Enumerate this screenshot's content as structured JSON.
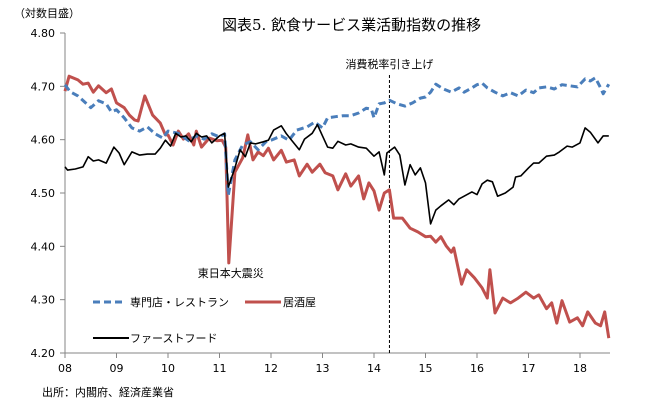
{
  "chart_data": {
    "type": "line",
    "title": "図表5. 飲食サービス業活動指数の推移",
    "ylabel": "（対数目盛）",
    "xlabel": "",
    "ylim": [
      4.2,
      4.8
    ],
    "xlim": [
      2008.0,
      2018.85
    ],
    "yticks": [
      "4.20",
      "4.30",
      "4.40",
      "4.50",
      "4.60",
      "4.70",
      "4.80"
    ],
    "ytick_values": [
      4.2,
      4.3,
      4.4,
      4.5,
      4.6,
      4.7,
      4.8
    ],
    "xticks": [
      "08",
      "09",
      "10",
      "11",
      "12",
      "13",
      "14",
      "15",
      "16",
      "17",
      "18"
    ],
    "xtick_values": [
      2008,
      2009,
      2010,
      2011,
      2012,
      2013,
      2014,
      2015,
      2016,
      2017,
      2018
    ],
    "grid": false,
    "legend_position": "bottom-left",
    "source": "出所：内閣府、経済産業省",
    "annotations": [
      {
        "text": "東日本大震災",
        "x": 2011.2,
        "y": 4.369
      },
      {
        "text": "消費税率引き上げ",
        "x": 2014.3
      }
    ],
    "series": [
      {
        "name": "専門店・レストラン",
        "color": "#4a7ebb",
        "style": "dashed",
        "x": [
          2008.0,
          2008.1,
          2008.25,
          2008.4,
          2008.5,
          2008.65,
          2008.8,
          2008.9,
          2009.0,
          2009.15,
          2009.3,
          2009.45,
          2009.6,
          2009.75,
          2009.9,
          2010.0,
          2010.2,
          2010.4,
          2010.55,
          2010.7,
          2010.85,
          2011.0,
          2011.1,
          2011.17,
          2011.3,
          2011.45,
          2011.6,
          2011.75,
          2011.9,
          2012.0,
          2012.2,
          2012.35,
          2012.5,
          2012.7,
          2012.85,
          2013.0,
          2013.1,
          2013.25,
          2013.4,
          2013.55,
          2013.7,
          2013.85,
          2013.95,
          2014.0,
          2014.1,
          2014.2,
          2014.3,
          2014.45,
          2014.6,
          2014.75,
          2014.9,
          2015.0,
          2015.1,
          2015.2,
          2015.35,
          2015.5,
          2015.65,
          2015.75,
          2015.9,
          2016.0,
          2016.1,
          2016.2,
          2016.35,
          2016.5,
          2016.65,
          2016.8,
          2016.95,
          2017.1,
          2017.2,
          2017.35,
          2017.5,
          2017.65,
          2017.8,
          2017.95,
          2018.1,
          2018.2,
          2018.3,
          2018.4,
          2018.45,
          2018.56
        ],
        "values": [
          4.703,
          4.69,
          4.682,
          4.669,
          4.66,
          4.673,
          4.667,
          4.652,
          4.656,
          4.641,
          4.622,
          4.616,
          4.624,
          4.611,
          4.603,
          4.616,
          4.612,
          4.598,
          4.607,
          4.601,
          4.611,
          4.605,
          4.611,
          4.496,
          4.562,
          4.59,
          4.596,
          4.581,
          4.596,
          4.599,
          4.607,
          4.599,
          4.618,
          4.624,
          4.633,
          4.622,
          4.641,
          4.643,
          4.645,
          4.645,
          4.65,
          4.659,
          4.657,
          4.641,
          4.667,
          4.669,
          4.674,
          4.667,
          4.663,
          4.669,
          4.678,
          4.68,
          4.689,
          4.704,
          4.695,
          4.689,
          4.697,
          4.689,
          4.697,
          4.703,
          4.706,
          4.697,
          4.689,
          4.682,
          4.688,
          4.682,
          4.693,
          4.688,
          4.697,
          4.699,
          4.695,
          4.703,
          4.701,
          4.699,
          4.714,
          4.71,
          4.716,
          4.697,
          4.686,
          4.704
        ]
      },
      {
        "name": "居酒屋",
        "color": "#c0504d",
        "style": "solid",
        "x": [
          2008.0,
          2008.08,
          2008.25,
          2008.35,
          2008.45,
          2008.55,
          2008.65,
          2008.8,
          2008.9,
          2009.0,
          2009.15,
          2009.25,
          2009.35,
          2009.42,
          2009.55,
          2009.7,
          2009.85,
          2009.95,
          2010.0,
          2010.1,
          2010.2,
          2010.3,
          2010.4,
          2010.5,
          2010.55,
          2010.65,
          2010.8,
          2010.95,
          2011.05,
          2011.12,
          2011.18,
          2011.3,
          2011.45,
          2011.55,
          2011.65,
          2011.75,
          2011.85,
          2011.95,
          2012.05,
          2012.2,
          2012.3,
          2012.45,
          2012.55,
          2012.7,
          2012.8,
          2012.95,
          2013.05,
          2013.2,
          2013.3,
          2013.45,
          2013.55,
          2013.7,
          2013.8,
          2013.9,
          2014.0,
          2014.1,
          2014.2,
          2014.3,
          2014.38,
          2014.55,
          2014.7,
          2014.85,
          2015.0,
          2015.1,
          2015.2,
          2015.3,
          2015.4,
          2015.5,
          2015.55,
          2015.7,
          2015.8,
          2015.95,
          2016.1,
          2016.2,
          2016.25,
          2016.35,
          2016.5,
          2016.65,
          2016.8,
          2016.95,
          2017.1,
          2017.2,
          2017.35,
          2017.45,
          2017.55,
          2017.65,
          2017.8,
          2017.95,
          2018.05,
          2018.15,
          2018.3,
          2018.4,
          2018.48,
          2018.56
        ],
        "values": [
          4.691,
          4.719,
          4.712,
          4.704,
          4.706,
          4.689,
          4.701,
          4.688,
          4.695,
          4.669,
          4.66,
          4.646,
          4.637,
          4.635,
          4.682,
          4.646,
          4.631,
          4.609,
          4.609,
          4.59,
          4.616,
          4.601,
          4.611,
          4.59,
          4.616,
          4.586,
          4.603,
          4.598,
          4.599,
          4.586,
          4.369,
          4.539,
          4.566,
          4.609,
          4.562,
          4.577,
          4.57,
          4.584,
          4.562,
          4.58,
          4.558,
          4.562,
          4.532,
          4.554,
          4.539,
          4.554,
          4.538,
          4.532,
          4.506,
          4.536,
          4.513,
          4.532,
          4.489,
          4.519,
          4.504,
          4.468,
          4.5,
          4.506,
          4.453,
          4.453,
          4.434,
          4.427,
          4.418,
          4.419,
          4.408,
          4.418,
          4.401,
          4.389,
          4.397,
          4.329,
          4.356,
          4.341,
          4.322,
          4.303,
          4.356,
          4.275,
          4.303,
          4.294,
          4.303,
          4.314,
          4.303,
          4.309,
          4.283,
          4.294,
          4.256,
          4.298,
          4.258,
          4.266,
          4.251,
          4.277,
          4.256,
          4.251,
          4.277,
          4.228
        ]
      },
      {
        "name": "ファーストフード",
        "color": "#000000",
        "style": "solid",
        "x": [
          2008.0,
          2008.05,
          2008.2,
          2008.35,
          2008.45,
          2008.55,
          2008.65,
          2008.8,
          2008.95,
          2009.05,
          2009.15,
          2009.3,
          2009.45,
          2009.6,
          2009.75,
          2009.85,
          2009.95,
          2010.05,
          2010.15,
          2010.25,
          2010.35,
          2010.45,
          2010.55,
          2010.65,
          2010.75,
          2010.85,
          2011.0,
          2011.1,
          2011.17,
          2011.3,
          2011.4,
          2011.5,
          2011.6,
          2011.7,
          2011.85,
          2011.95,
          2012.05,
          2012.2,
          2012.3,
          2012.4,
          2012.55,
          2012.65,
          2012.8,
          2012.9,
          2013.0,
          2013.1,
          2013.2,
          2013.3,
          2013.45,
          2013.55,
          2013.7,
          2013.85,
          2014.0,
          2014.1,
          2014.2,
          2014.25,
          2014.4,
          2014.5,
          2014.6,
          2014.7,
          2014.8,
          2014.9,
          2015.0,
          2015.1,
          2015.2,
          2015.3,
          2015.45,
          2015.55,
          2015.65,
          2015.75,
          2015.9,
          2016.0,
          2016.1,
          2016.2,
          2016.3,
          2016.4,
          2016.55,
          2016.7,
          2016.75,
          2016.85,
          2017.0,
          2017.1,
          2017.2,
          2017.35,
          2017.5,
          2017.6,
          2017.75,
          2017.85,
          2018.0,
          2018.1,
          2018.2,
          2018.35,
          2018.45,
          2018.56
        ],
        "values": [
          4.549,
          4.543,
          4.545,
          4.549,
          4.568,
          4.56,
          4.562,
          4.556,
          4.586,
          4.575,
          4.553,
          4.577,
          4.571,
          4.573,
          4.573,
          4.584,
          4.599,
          4.588,
          4.612,
          4.605,
          4.607,
          4.596,
          4.612,
          4.605,
          4.607,
          4.594,
          4.607,
          4.612,
          4.511,
          4.547,
          4.581,
          4.568,
          4.594,
          4.592,
          4.596,
          4.599,
          4.618,
          4.626,
          4.611,
          4.599,
          4.581,
          4.601,
          4.612,
          4.628,
          4.607,
          4.586,
          4.584,
          4.597,
          4.59,
          4.592,
          4.586,
          4.584,
          4.569,
          4.577,
          4.534,
          4.575,
          4.586,
          4.571,
          4.515,
          4.553,
          4.534,
          4.547,
          4.519,
          4.442,
          4.468,
          4.476,
          4.487,
          4.478,
          4.489,
          4.494,
          4.502,
          4.497,
          4.517,
          4.524,
          4.521,
          4.494,
          4.5,
          4.511,
          4.53,
          4.532,
          4.547,
          4.556,
          4.556,
          4.569,
          4.571,
          4.577,
          4.588,
          4.586,
          4.594,
          4.622,
          4.614,
          4.594,
          4.607,
          4.607
        ]
      }
    ]
  }
}
